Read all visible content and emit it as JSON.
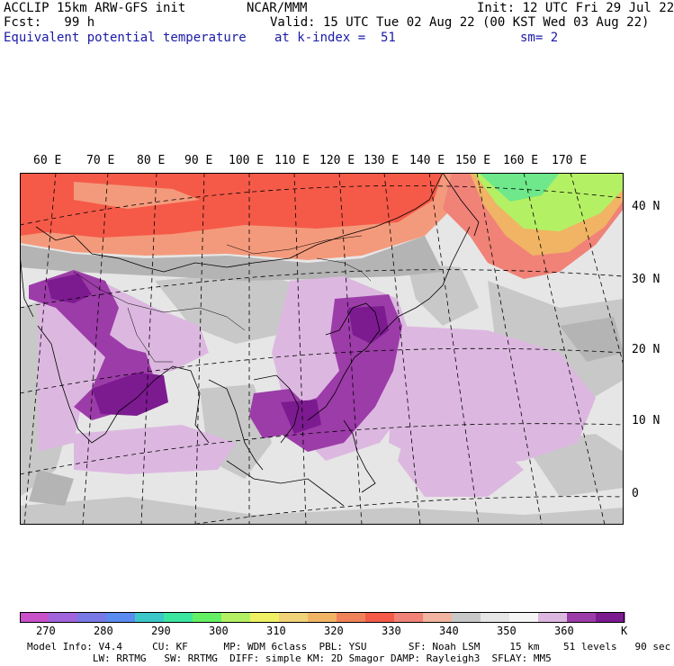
{
  "header": {
    "model": "ACCLIP 15km ARW-GFS init",
    "forecast": "Fcst:   99 h",
    "org": "NCAR/MMM",
    "init": "Init: 12 UTC Fri 29 Jul 22",
    "valid": "Valid: 15 UTC Tue 02 Aug 22 (00 KST Wed 03 Aug 22)",
    "field": "Equivalent potential temperature",
    "level": "at k-index =  51",
    "smoothing": "sm= 2"
  },
  "map": {
    "longitude_labels": [
      "60 E",
      "70 E",
      "80 E",
      "90 E",
      "100 E",
      "110 E",
      "120 E",
      "130 E",
      "140 E",
      "150 E",
      "160 E",
      "170 E"
    ],
    "latitude_labels": [
      "40 N",
      "30 N",
      "20 N",
      "10 N",
      "0"
    ],
    "colors": {
      "hot": "#f55a48",
      "warm": "#f49a7c",
      "greenish": "#6ee88a",
      "neutral_light": "#e6e6e6",
      "neutral_mid": "#c8c8c8",
      "neutral_dark": "#b4b4b4",
      "lavender": "#dcb8e0",
      "purple": "#9c3ca8",
      "deep_purple": "#7c1a90"
    }
  },
  "colorbar": {
    "unit": "K",
    "tick_labels": [
      "270",
      "280",
      "290",
      "300",
      "310",
      "320",
      "330",
      "340",
      "350",
      "360"
    ],
    "colors": [
      "#c850c8",
      "#a064dc",
      "#7878e6",
      "#5a8cf0",
      "#3cc8c8",
      "#3ce6a0",
      "#64f064",
      "#b4f064",
      "#f0f064",
      "#f0d278",
      "#f0b464",
      "#f0825a",
      "#f55a48",
      "#f08278",
      "#f0b4a0",
      "#c8c8c8",
      "#e6e6e6",
      "#f5f5f5",
      "#dcb8e0",
      "#9c3ca8",
      "#7c1a90"
    ]
  },
  "model_info": {
    "line1": "Model Info: V4.4     CU: KF      MP: WDM 6class  PBL: YSU       SF: Noah LSM     15 km    51 levels   90 sec",
    "line2": "           LW: RRTMG   SW: RRTMG  DIFF: simple KM: 2D Smagor DAMP: Rayleigh3  SFLAY: MM5"
  }
}
